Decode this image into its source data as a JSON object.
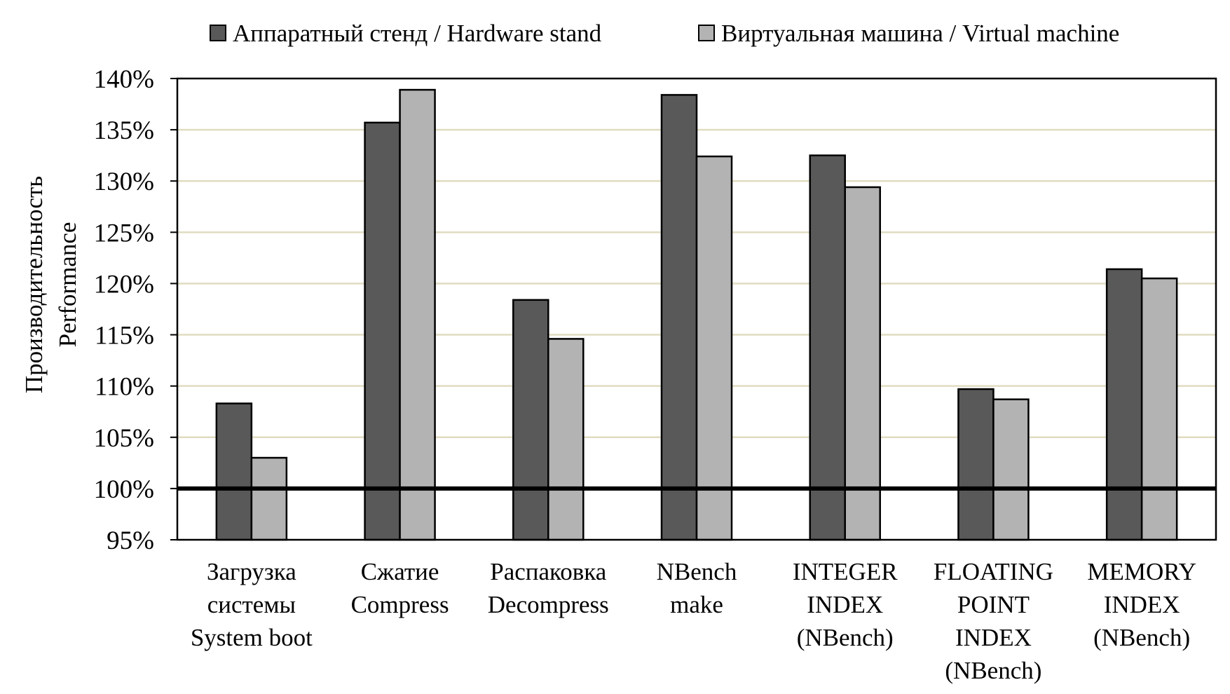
{
  "chart_data": {
    "type": "bar",
    "title": "",
    "xlabel": "",
    "ylabel": [
      "Производительность",
      "Performance"
    ],
    "ylim": [
      95,
      140
    ],
    "ytick_step": 5,
    "ytick_suffix": "%",
    "baseline": 100,
    "grid": "horizontal",
    "legend_position": "top",
    "categories": [
      [
        "Загрузка",
        "системы",
        "System boot"
      ],
      [
        "Сжатие",
        "Compress"
      ],
      [
        "Распаковка",
        "Decompress"
      ],
      [
        "NBench",
        "make"
      ],
      [
        "INTEGER",
        "INDEX",
        "(NBench)"
      ],
      [
        "FLOATING",
        "POINT",
        "INDEX",
        "(NBench)"
      ],
      [
        "MEMORY",
        "INDEX",
        "(NBench)"
      ]
    ],
    "series": [
      {
        "name": "Аппаратный стенд / Hardware stand",
        "color": "#595959",
        "values": [
          108.3,
          135.7,
          118.4,
          138.4,
          132.5,
          109.7,
          121.4
        ]
      },
      {
        "name": "Виртуальная машина / Virtual machine",
        "color": "#b3b3b3",
        "values": [
          103.0,
          138.9,
          114.6,
          132.4,
          129.4,
          108.7,
          120.5
        ]
      }
    ],
    "colors": {
      "grid": "#e0dcc0",
      "baseline": "#000000",
      "frame": "#000000",
      "bar_stroke": "#000000"
    }
  }
}
